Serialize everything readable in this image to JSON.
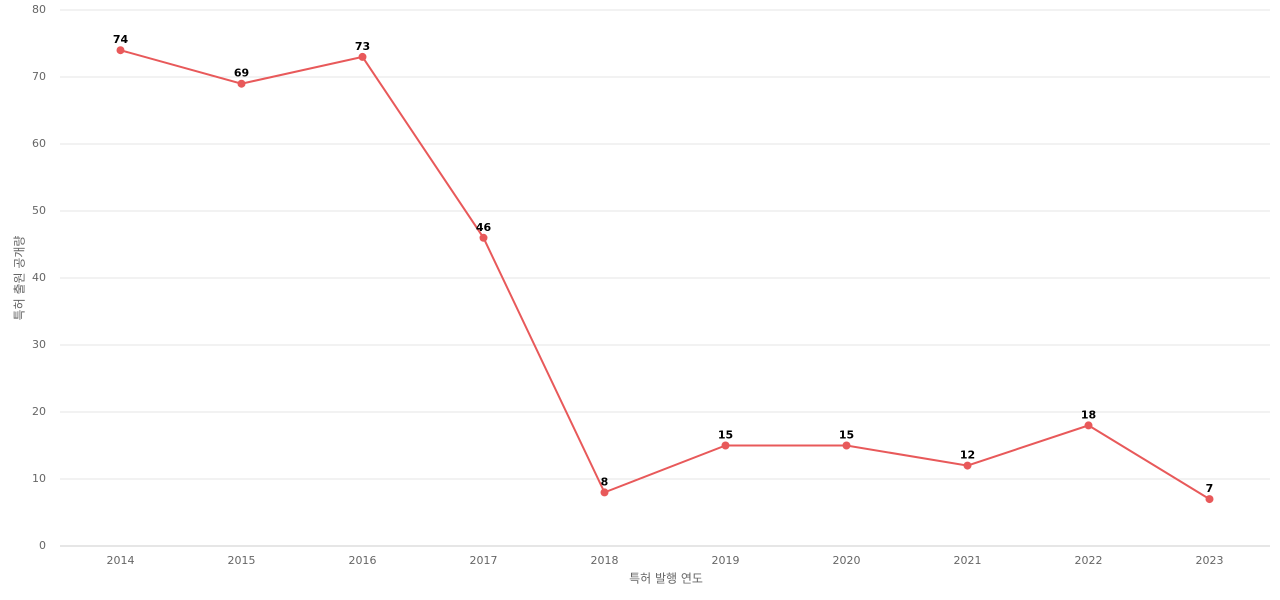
{
  "chart_data": {
    "type": "line",
    "x_label": "특허 발행 연도",
    "y_label": "특허 출원 공개량",
    "categories": [
      "2014",
      "2015",
      "2016",
      "2017",
      "2018",
      "2019",
      "2020",
      "2021",
      "2022",
      "2023"
    ],
    "series": [
      {
        "color": "#e8595a",
        "values": [
          74,
          69,
          73,
          46,
          8,
          15,
          15,
          12,
          18,
          7
        ]
      }
    ],
    "ylim": [
      0,
      80
    ],
    "yticks": [
      0,
      10,
      20,
      30,
      40,
      50,
      60,
      70,
      80
    ],
    "grid": true
  }
}
